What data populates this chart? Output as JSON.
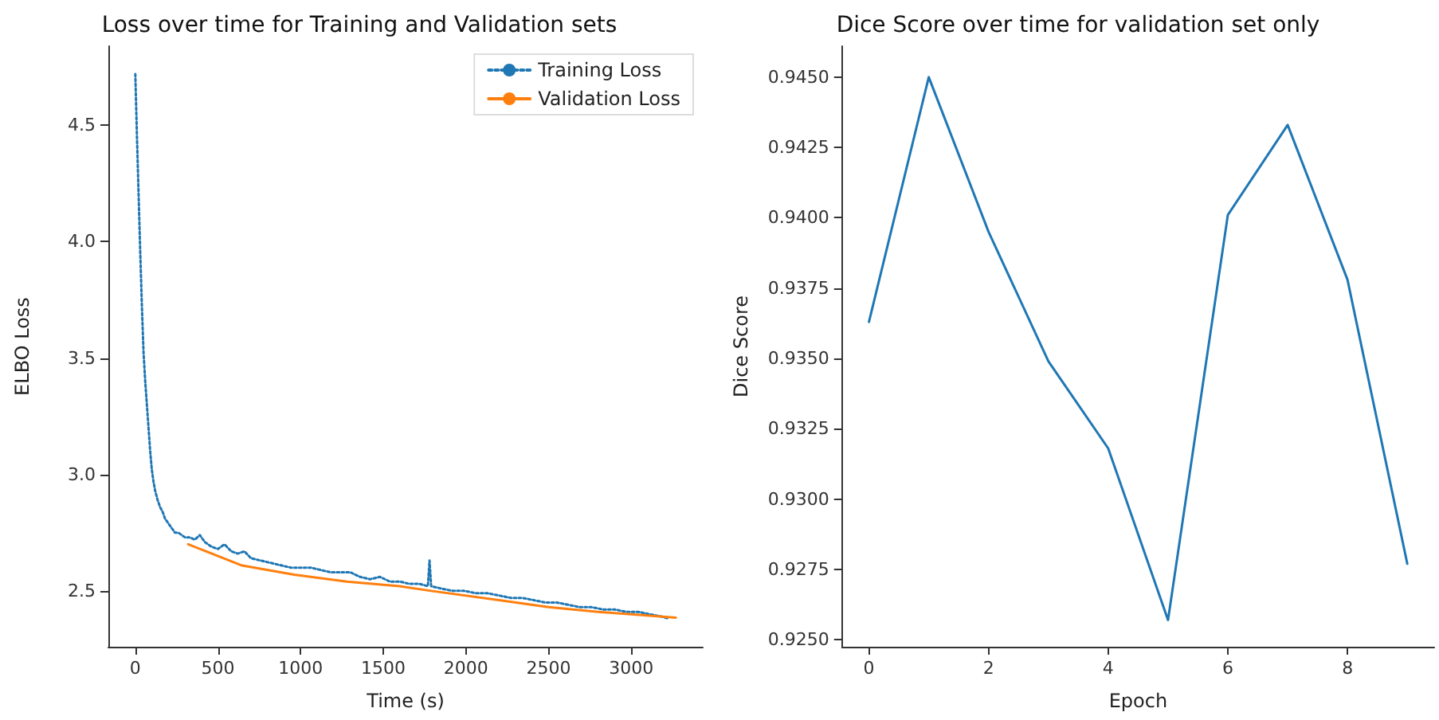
{
  "chart_data": [
    {
      "type": "line",
      "title": "Loss over time for Training and Validation sets",
      "xlabel": "Time (s)",
      "ylabel": "ELBO Loss",
      "legend": "top right",
      "grid": false,
      "xlim": [
        -163,
        3433
      ],
      "ylim": [
        2.26,
        4.84
      ],
      "xticks": [
        0,
        500,
        1000,
        1500,
        2000,
        2500,
        3000
      ],
      "yticks": [
        {
          "value": 2.5,
          "label": "2.5"
        },
        {
          "value": 3.0,
          "label": "3.0"
        },
        {
          "value": 3.5,
          "label": "3.5"
        },
        {
          "value": 4.0,
          "label": "4.0"
        },
        {
          "value": 4.5,
          "label": "4.5"
        }
      ],
      "series": [
        {
          "name": "Training Loss",
          "color": "#1f77b4",
          "line_style": "dotted",
          "x": [
            0,
            10,
            20,
            30,
            40,
            50,
            60,
            70,
            80,
            90,
            100,
            110,
            120,
            135,
            150,
            165,
            180,
            200,
            220,
            240,
            260,
            280,
            300,
            330,
            360,
            390,
            420,
            460,
            500,
            540,
            580,
            620,
            660,
            700,
            760,
            820,
            880,
            940,
            1000,
            1060,
            1120,
            1180,
            1240,
            1300,
            1360,
            1420,
            1480,
            1540,
            1600,
            1660,
            1720,
            1770,
            1780,
            1790,
            1850,
            1920,
            1990,
            2060,
            2130,
            2200,
            2270,
            2340,
            2410,
            2480,
            2550,
            2620,
            2690,
            2760,
            2830,
            2900,
            2970,
            3040,
            3110,
            3180,
            3230
          ],
          "values": [
            4.72,
            4.45,
            4.2,
            3.95,
            3.72,
            3.52,
            3.4,
            3.3,
            3.2,
            3.1,
            3.02,
            2.97,
            2.93,
            2.89,
            2.86,
            2.84,
            2.81,
            2.79,
            2.77,
            2.75,
            2.75,
            2.74,
            2.73,
            2.73,
            2.72,
            2.74,
            2.71,
            2.69,
            2.68,
            2.7,
            2.67,
            2.66,
            2.67,
            2.64,
            2.63,
            2.62,
            2.61,
            2.6,
            2.6,
            2.6,
            2.59,
            2.58,
            2.58,
            2.58,
            2.56,
            2.55,
            2.56,
            2.54,
            2.54,
            2.53,
            2.53,
            2.52,
            2.63,
            2.52,
            2.51,
            2.5,
            2.5,
            2.49,
            2.49,
            2.48,
            2.47,
            2.47,
            2.46,
            2.45,
            2.45,
            2.44,
            2.43,
            2.43,
            2.42,
            2.42,
            2.41,
            2.41,
            2.4,
            2.39,
            2.38
          ]
        },
        {
          "name": "Validation Loss",
          "color": "#ff7f0e",
          "line_style": "solid",
          "x": [
            320,
            640,
            960,
            1280,
            1600,
            1790,
            2200,
            2500,
            2800,
            3270
          ],
          "values": [
            2.7,
            2.61,
            2.57,
            2.54,
            2.52,
            2.5,
            2.46,
            2.43,
            2.41,
            2.385
          ]
        }
      ]
    },
    {
      "type": "line",
      "title": "Dice Score over time for validation set only",
      "xlabel": "Epoch",
      "ylabel": "Dice Score",
      "legend": false,
      "grid": false,
      "xlim": [
        -0.45,
        9.45
      ],
      "ylim": [
        0.92475,
        0.9461
      ],
      "xticks": [
        0,
        2,
        4,
        6,
        8
      ],
      "yticks": [
        {
          "value": 0.925,
          "label": "0.9250"
        },
        {
          "value": 0.9275,
          "label": "0.9275"
        },
        {
          "value": 0.93,
          "label": "0.9300"
        },
        {
          "value": 0.9325,
          "label": "0.9325"
        },
        {
          "value": 0.935,
          "label": "0.9350"
        },
        {
          "value": 0.9375,
          "label": "0.9375"
        },
        {
          "value": 0.94,
          "label": "0.9400"
        },
        {
          "value": 0.9425,
          "label": "0.9425"
        },
        {
          "value": 0.945,
          "label": "0.9450"
        }
      ],
      "series": [
        {
          "color": "#1f77b4",
          "line_style": "solid",
          "x": [
            0,
            1,
            2,
            3,
            4,
            5,
            6,
            7,
            8,
            9
          ],
          "values": [
            0.9363,
            0.945,
            0.9395,
            0.9349,
            0.9318,
            0.9257,
            0.9401,
            0.9433,
            0.9378,
            0.9277
          ]
        }
      ]
    }
  ]
}
